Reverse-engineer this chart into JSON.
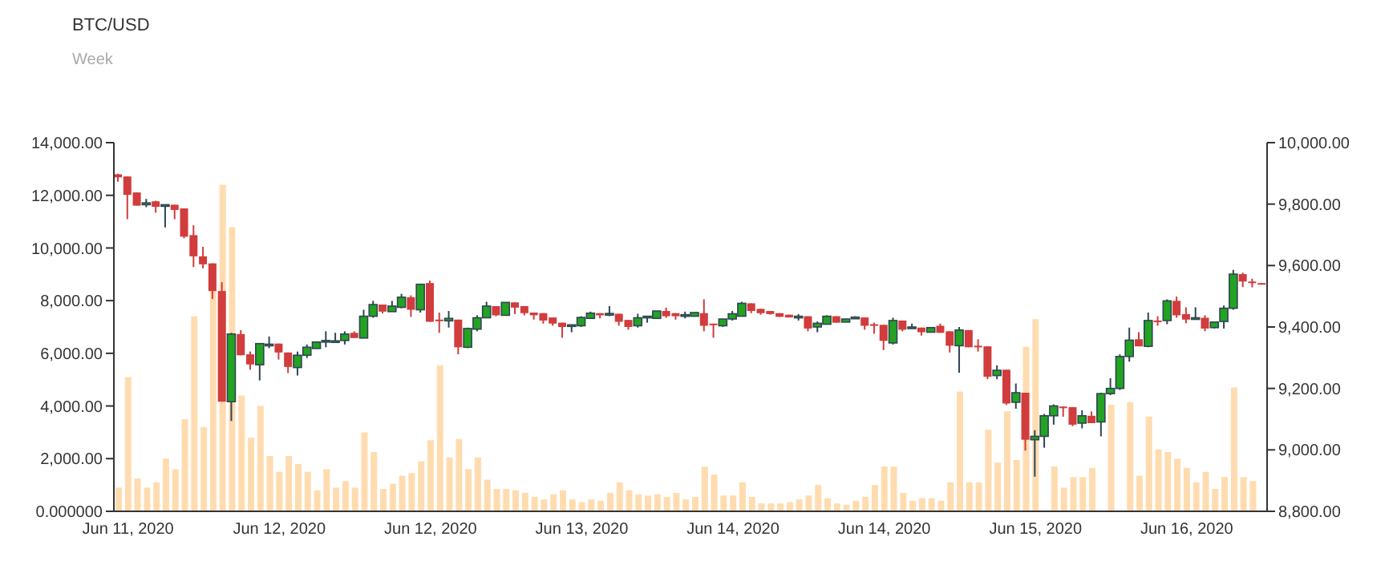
{
  "chart_data": {
    "type": "candlestick",
    "title": "BTC/USD",
    "subtitle": "Week",
    "categories": [
      null,
      "Jun 11, 2020",
      null,
      null,
      null,
      null,
      null,
      null,
      null,
      null,
      null,
      null,
      null,
      null,
      null,
      null,
      null,
      "Jun 12, 2020",
      null,
      null,
      null,
      null,
      null,
      null,
      null,
      null,
      null,
      null,
      null,
      null,
      null,
      null,
      null,
      "Jun 12, 2020",
      null,
      null,
      null,
      null,
      null,
      null,
      null,
      null,
      null,
      null,
      null,
      null,
      null,
      null,
      null,
      "Jun 13, 2020",
      null,
      null,
      null,
      null,
      null,
      null,
      null,
      null,
      null,
      null,
      null,
      null,
      null,
      null,
      null,
      "Jun 14, 2020",
      null,
      null,
      null,
      null,
      null,
      null,
      null,
      null,
      null,
      null,
      null,
      null,
      null,
      null,
      null,
      "Jun 14, 2020",
      null,
      null,
      null,
      null,
      null,
      null,
      null,
      null,
      null,
      null,
      null,
      null,
      null,
      null,
      null,
      "Jun 15, 2020",
      null,
      null,
      null,
      null,
      null,
      null,
      null,
      null,
      null,
      null,
      null,
      null,
      null,
      null,
      null,
      "Jun 16, 2020",
      null,
      null,
      null,
      null,
      null,
      null,
      null,
      null
    ],
    "ylim": [
      0,
      14000
    ],
    "yticks": [
      {
        "value": 0,
        "label": "0.000000"
      },
      {
        "value": 2000,
        "label": "2,000.00"
      },
      {
        "value": 4000,
        "label": "4,000.00"
      },
      {
        "value": 6000,
        "label": "6,000.00"
      },
      {
        "value": 8000,
        "label": "8,000.00"
      },
      {
        "value": 10000,
        "label": "10,000.00"
      },
      {
        "value": 12000,
        "label": "12,000.00"
      },
      {
        "value": 14000,
        "label": "14,000.00"
      }
    ],
    "y2lim": [
      8800,
      10000
    ],
    "y2ticks": [
      {
        "value": 8800,
        "label": "8,800.00"
      },
      {
        "value": 9000,
        "label": "9,000.00"
      },
      {
        "value": 9200,
        "label": "9,200.00"
      },
      {
        "value": 9400,
        "label": "9,400.00"
      },
      {
        "value": 9600,
        "label": "9,600.00"
      },
      {
        "value": 9800,
        "label": "9,800.00"
      },
      {
        "value": 10000,
        "label": "10,000.00"
      }
    ],
    "series": [
      {
        "type": "bar",
        "color": "#ffdcb0",
        "values": [
          900,
          5100,
          1250,
          900,
          1100,
          2000,
          1600,
          3500,
          7400,
          3200,
          8400,
          12400,
          10800,
          4400,
          2800,
          4000,
          2100,
          1500,
          2100,
          1800,
          1500,
          800,
          1600,
          900,
          1150,
          900,
          3000,
          2250,
          850,
          1050,
          1350,
          1450,
          1900,
          2700,
          5550,
          2050,
          2750,
          1600,
          2050,
          1200,
          850,
          850,
          800,
          700,
          550,
          450,
          650,
          800,
          450,
          350,
          450,
          400,
          700,
          1100,
          800,
          650,
          600,
          650,
          550,
          700,
          450,
          550,
          1700,
          1400,
          600,
          600,
          1100,
          550,
          300,
          300,
          300,
          350,
          450,
          600,
          1000,
          500,
          300,
          250,
          400,
          550,
          1000,
          1700,
          1700,
          700,
          400,
          500,
          500,
          400,
          1100,
          4550,
          1100,
          1100,
          3100,
          1850,
          3800,
          1950,
          6250,
          7300,
          null,
          1700,
          900,
          1300,
          1300,
          1650,
          null,
          4050,
          null,
          4150,
          1350,
          3600,
          2350,
          2250,
          2000,
          1650,
          1100,
          1500,
          850,
          1300,
          4700,
          1300,
          1150,
          null
        ]
      },
      {
        "type": "candlestick",
        "axis": "y2",
        "ohlc": [
          [
            9897,
            9899,
            9873,
            9887
          ],
          [
            9890,
            9890,
            9751,
            9830
          ],
          [
            9838,
            9838,
            9795,
            9795
          ],
          [
            9798,
            9817,
            9790,
            9804
          ],
          [
            9809,
            9811,
            9772,
            9791
          ],
          [
            9793,
            9798,
            9724,
            9798
          ],
          [
            9798,
            9798,
            9751,
            9781
          ],
          [
            9786,
            9786,
            9689,
            9694
          ],
          [
            9699,
            9731,
            9595,
            9630
          ],
          [
            9630,
            9661,
            9591,
            9604
          ],
          [
            9607,
            9607,
            9491,
            9517
          ],
          [
            9517,
            9546,
            9157,
            9157
          ],
          [
            9157,
            9381,
            9094,
            9377
          ],
          [
            9377,
            9390,
            9308,
            9308
          ],
          [
            9311,
            9320,
            9261,
            9278
          ],
          [
            9277,
            9346,
            9226,
            9346
          ],
          [
            9342,
            9369,
            9331,
            9344
          ],
          [
            9346,
            9346,
            9294,
            9317
          ],
          [
            9317,
            9317,
            9250,
            9270
          ],
          [
            9268,
            9320,
            9242,
            9308
          ],
          [
            9308,
            9343,
            9299,
            9334
          ],
          [
            9330,
            9351,
            9330,
            9351
          ],
          [
            9351,
            9386,
            9334,
            9356
          ],
          [
            9352,
            9381,
            9351,
            9355
          ],
          [
            9356,
            9386,
            9343,
            9377
          ],
          [
            9381,
            9386,
            9364,
            9364
          ],
          [
            9364,
            9456,
            9364,
            9435
          ],
          [
            9435,
            9485,
            9430,
            9473
          ],
          [
            9473,
            9473,
            9444,
            9450
          ],
          [
            9450,
            9485,
            9450,
            9468
          ],
          [
            9464,
            9508,
            9461,
            9497
          ],
          [
            9497,
            9503,
            9433,
            9456
          ],
          [
            9456,
            9539,
            9447,
            9539
          ],
          [
            9543,
            9551,
            9417,
            9417
          ],
          [
            9424,
            9447,
            9381,
            9420
          ],
          [
            9420,
            9452,
            9398,
            9428
          ],
          [
            9424,
            9424,
            9311,
            9334
          ],
          [
            9334,
            9398,
            9331,
            9395
          ],
          [
            9393,
            9438,
            9386,
            9430
          ],
          [
            9430,
            9482,
            9430,
            9468
          ],
          [
            9468,
            9468,
            9435,
            9438
          ],
          [
            9438,
            9480,
            9438,
            9480
          ],
          [
            9480,
            9480,
            9442,
            9463
          ],
          [
            9468,
            9468,
            9438,
            9445
          ],
          [
            9447,
            9447,
            9424,
            9438
          ],
          [
            9445,
            9445,
            9411,
            9421
          ],
          [
            9431,
            9431,
            9404,
            9411
          ],
          [
            9414,
            9414,
            9365,
            9400
          ],
          [
            9404,
            9407,
            9383,
            9407
          ],
          [
            9404,
            9435,
            9400,
            9431
          ],
          [
            9428,
            9450,
            9428,
            9445
          ],
          [
            9445,
            9445,
            9428,
            9438
          ],
          [
            9442,
            9468,
            9435,
            9444
          ],
          [
            9443,
            9443,
            9404,
            9417
          ],
          [
            9423,
            9423,
            9391,
            9400
          ],
          [
            9404,
            9443,
            9398,
            9430
          ],
          [
            9433,
            9435,
            9414,
            9435
          ],
          [
            9428,
            9452,
            9426,
            9452
          ],
          [
            9452,
            9463,
            9430,
            9435
          ],
          [
            9445,
            9445,
            9424,
            9435
          ],
          [
            9438,
            9450,
            9428,
            9440
          ],
          [
            9435,
            9447,
            9435,
            9447
          ],
          [
            9445,
            9490,
            9386,
            9404
          ],
          [
            9411,
            9411,
            9365,
            9409
          ],
          [
            9404,
            9426,
            9400,
            9426
          ],
          [
            9426,
            9452,
            9421,
            9443
          ],
          [
            9435,
            9482,
            9435,
            9477
          ],
          [
            9477,
            9477,
            9445,
            9452
          ],
          [
            9459,
            9459,
            9440,
            9445
          ],
          [
            9452,
            9452,
            9440,
            9442
          ],
          [
            9445,
            9445,
            9433,
            9433
          ],
          [
            9440,
            9440,
            9431,
            9431
          ],
          [
            9433,
            9442,
            9421,
            9435
          ],
          [
            9435,
            9435,
            9386,
            9395
          ],
          [
            9400,
            9418,
            9383,
            9412
          ],
          [
            9409,
            9438,
            9409,
            9435
          ],
          [
            9435,
            9435,
            9414,
            9414
          ],
          [
            9416,
            9426,
            9416,
            9426
          ],
          [
            9430,
            9435,
            9428,
            9432
          ],
          [
            9431,
            9431,
            9391,
            9404
          ],
          [
            9409,
            9414,
            9378,
            9407
          ],
          [
            9407,
            9407,
            9325,
            9355
          ],
          [
            9348,
            9430,
            9343,
            9421
          ],
          [
            9421,
            9421,
            9386,
            9391
          ],
          [
            9398,
            9411,
            9395,
            9400
          ],
          [
            9398,
            9398,
            9372,
            9383
          ],
          [
            9383,
            9398,
            9383,
            9398
          ],
          [
            9404,
            9411,
            9381,
            9381
          ],
          [
            9386,
            9386,
            9317,
            9339
          ],
          [
            9339,
            9400,
            9251,
            9390
          ],
          [
            9390,
            9390,
            9334,
            9334
          ],
          [
            9339,
            9360,
            9320,
            9336
          ],
          [
            9337,
            9337,
            9230,
            9238
          ],
          [
            9242,
            9275,
            9230,
            9259
          ],
          [
            9261,
            9261,
            9146,
            9151
          ],
          [
            9155,
            9216,
            9134,
            9186
          ],
          [
            9186,
            9186,
            8998,
            9033
          ],
          [
            9033,
            9064,
            8913,
            9044
          ],
          [
            9044,
            9117,
            9007,
            9111
          ],
          [
            9111,
            9148,
            9082,
            9143
          ],
          [
            9141,
            9141,
            9108,
            9138
          ],
          [
            9139,
            9139,
            9077,
            9082
          ],
          [
            9087,
            9129,
            9070,
            9111
          ],
          [
            9111,
            9125,
            9087,
            9087
          ],
          [
            9091,
            9186,
            9044,
            9183
          ],
          [
            9183,
            9233,
            9178,
            9200
          ],
          [
            9200,
            9311,
            9195,
            9304
          ],
          [
            9304,
            9398,
            9287,
            9357
          ],
          [
            9360,
            9383,
            9337,
            9337
          ],
          [
            9337,
            9447,
            9334,
            9421
          ],
          [
            9421,
            9435,
            9404,
            9418
          ],
          [
            9421,
            9490,
            9409,
            9485
          ],
          [
            9485,
            9499,
            9430,
            9438
          ],
          [
            9442,
            9464,
            9412,
            9424
          ],
          [
            9428,
            9464,
            9428,
            9430
          ],
          [
            9430,
            9438,
            9386,
            9395
          ],
          [
            9398,
            9416,
            9395,
            9416
          ],
          [
            9418,
            9470,
            9395,
            9461
          ],
          [
            9461,
            9586,
            9456,
            9572
          ],
          [
            9572,
            9577,
            9530,
            9548
          ],
          [
            9548,
            9557,
            9529,
            9546
          ],
          [
            9543,
            9543,
            9541,
            9541
          ]
        ],
        "colors": [
          "#d13c3c",
          "#d13c3c",
          "#d13c3c",
          "#22a322",
          "#d13c3c",
          "#22a322",
          "#d13c3c",
          "#d13c3c",
          "#d13c3c",
          "#d13c3c",
          "#d13c3c",
          "#d13c3c",
          "#22a322",
          "#d13c3c",
          "#d13c3c",
          "#22a322",
          "#22a322",
          "#d13c3c",
          "#d13c3c",
          "#22a322",
          "#22a322",
          "#22a322",
          "#22a322",
          "#22a322",
          "#22a322",
          "#d13c3c",
          "#22a322",
          "#22a322",
          "#d13c3c",
          "#22a322",
          "#22a322",
          "#d13c3c",
          "#22a322",
          "#d13c3c",
          "#d13c3c",
          "#22a322",
          "#d13c3c",
          "#22a322",
          "#22a322",
          "#22a322",
          "#d13c3c",
          "#22a322",
          "#d13c3c",
          "#d13c3c",
          "#d13c3c",
          "#d13c3c",
          "#d13c3c",
          "#d13c3c",
          "#22a322",
          "#22a322",
          "#22a322",
          "#d13c3c",
          "#22a322",
          "#d13c3c",
          "#d13c3c",
          "#22a322",
          "#22a322",
          "#22a322",
          "#d13c3c",
          "#d13c3c",
          "#22a322",
          "#22a322",
          "#d13c3c",
          "#d13c3c",
          "#22a322",
          "#22a322",
          "#22a322",
          "#d13c3c",
          "#d13c3c",
          "#d13c3c",
          "#d13c3c",
          "#d13c3c",
          "#22a322",
          "#d13c3c",
          "#22a322",
          "#22a322",
          "#d13c3c",
          "#22a322",
          "#22a322",
          "#d13c3c",
          "#d13c3c",
          "#d13c3c",
          "#22a322",
          "#d13c3c",
          "#22a322",
          "#d13c3c",
          "#22a322",
          "#d13c3c",
          "#d13c3c",
          "#22a322",
          "#d13c3c",
          "#d13c3c",
          "#d13c3c",
          "#22a322",
          "#d13c3c",
          "#22a322",
          "#d13c3c",
          "#22a322",
          "#22a322",
          "#22a322",
          "#d13c3c",
          "#d13c3c",
          "#22a322",
          "#d13c3c",
          "#22a322",
          "#22a322",
          "#22a322",
          "#22a322",
          "#d13c3c",
          "#22a322",
          "#d13c3c",
          "#22a322",
          "#d13c3c",
          "#d13c3c",
          "#22a322",
          "#d13c3c",
          "#22a322",
          "#22a322",
          "#22a322",
          "#d13c3c",
          "#d13c3c",
          "#d13c3c"
        ]
      }
    ]
  }
}
